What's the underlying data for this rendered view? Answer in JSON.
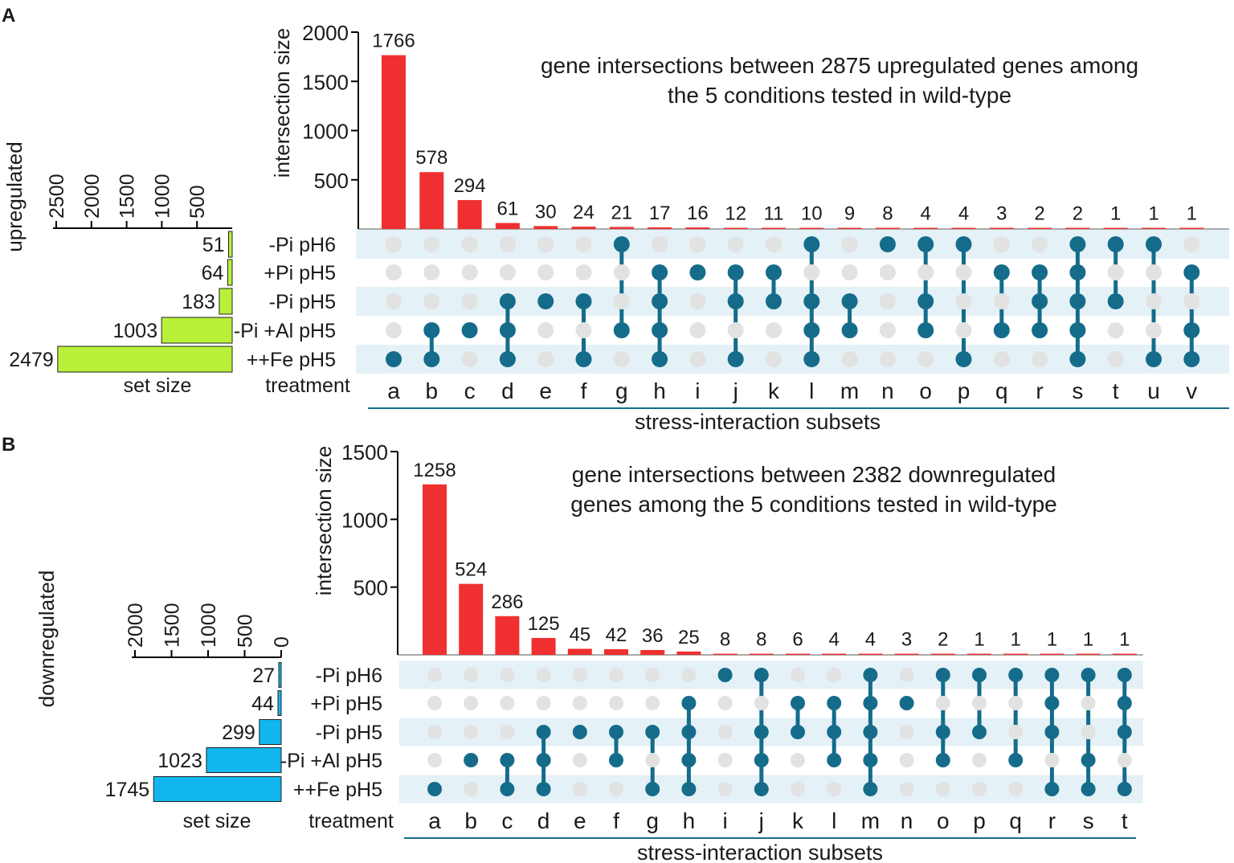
{
  "colors": {
    "bar_red": "#f03030",
    "dot_active": "#156c8a",
    "dot_inactive": "#e2e2e2",
    "row_shade": "#e4f1f6",
    "set_bar_up": "#b8f03a",
    "set_bar_down": "#12b6ee",
    "subset_label": "#156c8a"
  },
  "chart_data": [
    {
      "type": "bar",
      "panel_label": "A",
      "side_label": "upregulated",
      "title_lines": [
        "gene intersections between 2875 upregulated genes among",
        "the 5 conditions tested in wild-type"
      ],
      "ylabel": "intersection size",
      "ylim": [
        0,
        2000
      ],
      "yticks": [
        2000,
        1500,
        1000,
        500
      ],
      "categories": [
        "a",
        "b",
        "c",
        "d",
        "e",
        "f",
        "g",
        "h",
        "i",
        "j",
        "k",
        "l",
        "m",
        "n",
        "o",
        "p",
        "q",
        "r",
        "s",
        "t",
        "u",
        "v"
      ],
      "values": [
        1766,
        578,
        294,
        61,
        30,
        24,
        21,
        17,
        16,
        12,
        11,
        10,
        9,
        8,
        4,
        4,
        3,
        2,
        2,
        1,
        1,
        1
      ],
      "value_labels": [
        "1766",
        "578",
        "294",
        "61",
        "30",
        "24",
        "21",
        "17",
        "16",
        "12",
        "11",
        "10",
        "9",
        "8",
        "4",
        "4",
        "3",
        "2",
        "2",
        "1",
        "1",
        "1"
      ],
      "treatment_label": "treatment",
      "treatments": [
        "-Pi pH6",
        "+Pi pH5",
        "-Pi pH5",
        "-Pi +Al pH5",
        "++Fe pH5"
      ],
      "set_sizes": [
        51,
        64,
        183,
        1003,
        2479
      ],
      "set_size_labels": [
        "51",
        "64",
        "183",
        "1003",
        "2479"
      ],
      "set_size_label": "set size",
      "set_axis_max": 2500,
      "set_axis_ticks": [
        2500,
        2000,
        1500,
        1000,
        500
      ],
      "set_axis_tick_labels": [
        "2500",
        "2000",
        "1500",
        "1000",
        "500"
      ],
      "subset_title": "stress-interaction subsets",
      "membership": [
        [
          4
        ],
        [
          3,
          4
        ],
        [
          3
        ],
        [
          2,
          3,
          4
        ],
        [
          2
        ],
        [
          2,
          4
        ],
        [
          0,
          3
        ],
        [
          1,
          2,
          3,
          4
        ],
        [
          1
        ],
        [
          1,
          2,
          4
        ],
        [
          1,
          2
        ],
        [
          0,
          2,
          3,
          4
        ],
        [
          2,
          3
        ],
        [
          0
        ],
        [
          0,
          2,
          3
        ],
        [
          0,
          4
        ],
        [
          1,
          3
        ],
        [
          1,
          2,
          3
        ],
        [
          0,
          1,
          2,
          3,
          4
        ],
        [
          0,
          2
        ],
        [
          0,
          4
        ],
        [
          1,
          3,
          4
        ]
      ]
    },
    {
      "type": "bar",
      "panel_label": "B",
      "side_label": "downregulated",
      "title_lines": [
        "gene intersections between 2382 downregulated",
        "genes among the 5 conditions tested in wild-type"
      ],
      "ylabel": "intersection size",
      "ylim": [
        0,
        1500
      ],
      "yticks": [
        1500,
        1000,
        500
      ],
      "categories": [
        "a",
        "b",
        "c",
        "d",
        "e",
        "f",
        "g",
        "h",
        "i",
        "j",
        "k",
        "l",
        "m",
        "n",
        "o",
        "p",
        "q",
        "r",
        "s",
        "t"
      ],
      "values": [
        1258,
        524,
        286,
        125,
        45,
        42,
        36,
        25,
        8,
        8,
        6,
        4,
        4,
        3,
        2,
        1,
        1,
        1,
        1,
        1
      ],
      "value_labels": [
        "1258",
        "524",
        "286",
        "125",
        "45",
        "42",
        "36",
        "25",
        "8",
        "8",
        "6",
        "4",
        "4",
        "3",
        "2",
        "1",
        "1",
        "1",
        "1",
        "1"
      ],
      "treatment_label": "treatment",
      "treatments": [
        "-Pi pH6",
        "+Pi pH5",
        "-Pi pH5",
        "-Pi +Al pH5",
        "++Fe pH5"
      ],
      "set_sizes": [
        27,
        44,
        299,
        1023,
        1745
      ],
      "set_size_labels": [
        "27",
        "44",
        "299",
        "1023",
        "1745"
      ],
      "set_size_label": "set size",
      "set_axis_max": 2000,
      "set_axis_ticks": [
        2000,
        1500,
        1000,
        500,
        0
      ],
      "set_axis_tick_labels": [
        "2000",
        "1500",
        "1000",
        "500",
        "0"
      ],
      "subset_title": "stress-interaction subsets",
      "membership": [
        [
          4
        ],
        [
          3
        ],
        [
          3,
          4
        ],
        [
          2,
          3,
          4
        ],
        [
          2
        ],
        [
          2,
          3
        ],
        [
          2,
          4
        ],
        [
          1,
          2,
          3,
          4
        ],
        [
          0
        ],
        [
          0,
          2,
          3,
          4
        ],
        [
          1,
          2
        ],
        [
          1,
          2,
          3
        ],
        [
          0,
          1,
          2,
          3,
          4
        ],
        [
          1
        ],
        [
          0,
          2,
          3
        ],
        [
          0,
          2
        ],
        [
          0,
          3
        ],
        [
          0,
          1,
          2,
          4
        ],
        [
          0,
          3,
          4
        ],
        [
          0,
          1,
          2,
          4
        ]
      ]
    }
  ]
}
